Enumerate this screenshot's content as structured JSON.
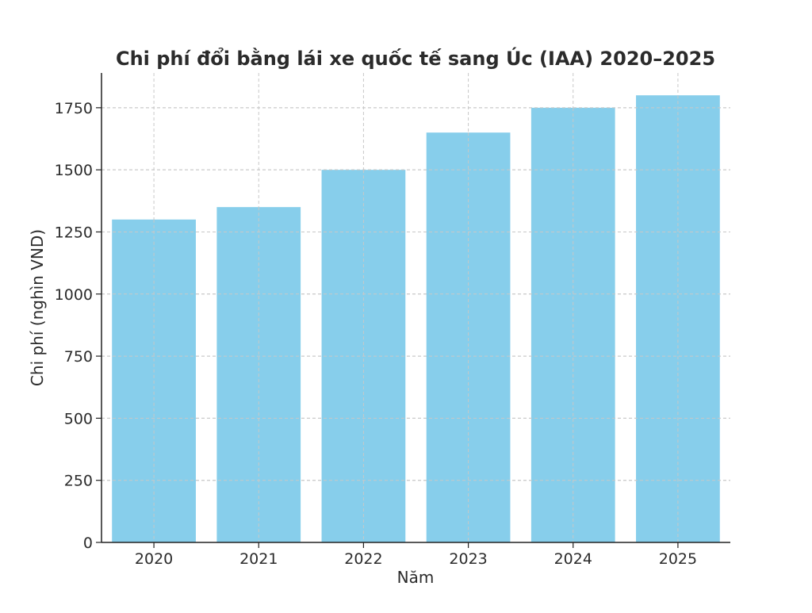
{
  "chart_data": {
    "type": "bar",
    "title": "Chi phí đổi bằng lái xe quốc tế sang Úc (IAA) 2020–2025",
    "xlabel": "Năm",
    "ylabel": "Chi phí (nghìn VND)",
    "categories": [
      "2020",
      "2021",
      "2022",
      "2023",
      "2024",
      "2025"
    ],
    "values": [
      1300,
      1350,
      1500,
      1650,
      1750,
      1800
    ],
    "ylim": [
      0,
      1890
    ],
    "yticks": [
      0,
      250,
      500,
      750,
      1000,
      1250,
      1500,
      1750
    ],
    "grid": true,
    "bar_color": "#87ceeb",
    "legend": "none"
  }
}
